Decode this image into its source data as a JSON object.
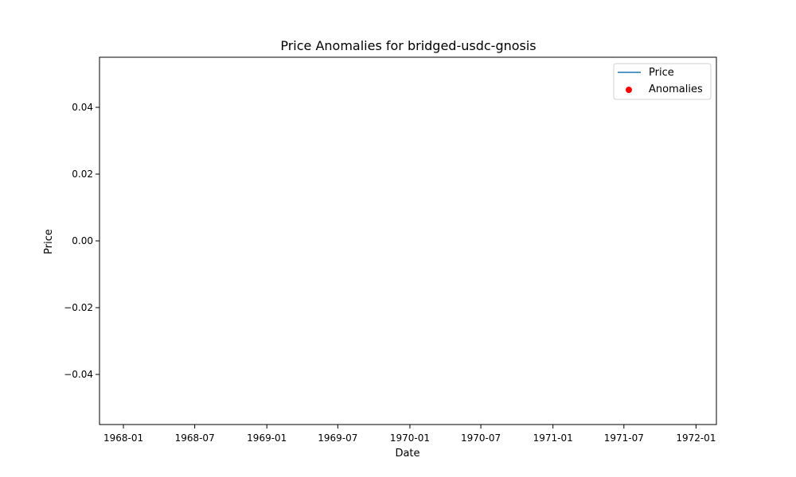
{
  "chart_data": {
    "type": "line",
    "title": "Price Anomalies for bridged-usdc-gnosis",
    "xlabel": "Date",
    "ylabel": "Price",
    "x_ticks": [
      "1968-01",
      "1968-07",
      "1969-01",
      "1969-07",
      "1970-01",
      "1970-07",
      "1971-01",
      "1971-07",
      "1972-01"
    ],
    "xlim": [
      "1967-11-01",
      "1972-02-22"
    ],
    "y_ticks": [
      0.04,
      0.02,
      0.0,
      -0.02,
      -0.04
    ],
    "y_tick_labels": [
      "0.04",
      "0.02",
      "0.00",
      "−0.02",
      "−0.04"
    ],
    "ylim": [
      -0.055,
      0.055
    ],
    "grid": false,
    "legend_position": "top-right",
    "series": [
      {
        "name": "Price",
        "kind": "line",
        "color": "#1f77b4",
        "x": [],
        "y": []
      },
      {
        "name": "Anomalies",
        "kind": "scatter",
        "color": "#ff0000",
        "x": [],
        "y": []
      }
    ]
  }
}
